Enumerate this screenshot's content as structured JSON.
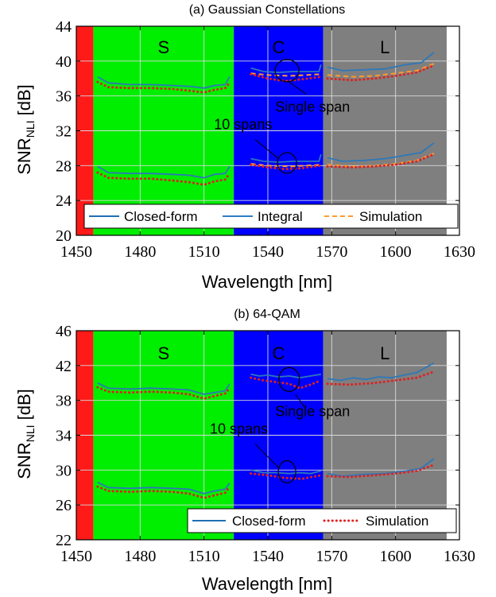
{
  "chart_data": [
    {
      "type": "line",
      "title": "(a) Gaussian Constellations",
      "xlabel": "Wavelength [nm]",
      "ylabel_main": "SNR",
      "ylabel_sub": "NLI",
      "ylabel_unit": " [dB]",
      "xlim": [
        1450,
        1630
      ],
      "ylim": [
        20,
        44
      ],
      "xticks": [
        "1450",
        "1480",
        "1510",
        "1540",
        "1570",
        "1600",
        "1630"
      ],
      "yticks": [
        "20",
        "24",
        "28",
        "32",
        "36",
        "40",
        "44"
      ],
      "grid": true,
      "bands": [
        {
          "name": "",
          "x0": 1450,
          "x1": 1458,
          "color": "#ff1a1a"
        },
        {
          "name": "S",
          "x0": 1458,
          "x1": 1524,
          "color": "#00ee00"
        },
        {
          "name": "C",
          "x0": 1524,
          "x1": 1566,
          "color": "#0000ff"
        },
        {
          "name": "L",
          "x0": 1566,
          "x1": 1624,
          "color": "#7f7f7f"
        }
      ],
      "annotations": [
        {
          "text": "Single span",
          "x": 1561,
          "y": 34.2
        },
        {
          "text": "10 spans",
          "x": 1542,
          "y": 32.2
        }
      ],
      "legend": {
        "placement": "bottom",
        "entries": [
          {
            "label": "Closed-form",
            "style": "solid",
            "color": "#1f6fb4"
          },
          {
            "label": "Integral",
            "style": "solid",
            "color": "#2e7fc2"
          },
          {
            "label": "Simulation",
            "style": "dashed",
            "color": "#ff9a2e"
          }
        ]
      },
      "series": [
        {
          "name": "Closed-form",
          "group": "Single span",
          "color": "#2e78b8",
          "style": "solid",
          "segments": [
            {
              "x": [
                1460,
                1465,
                1475,
                1485,
                1495,
                1503,
                1510,
                1515,
                1520,
                1522
              ],
              "y": [
                38.2,
                37.5,
                37.3,
                37.3,
                37.2,
                37.1,
                36.9,
                37.2,
                37.3,
                38.2
              ]
            },
            {
              "x": [
                1532,
                1538,
                1545,
                1552,
                1558,
                1564,
                1565
              ],
              "y": [
                39.2,
                38.8,
                38.7,
                38.8,
                38.8,
                38.8,
                39.6
              ]
            },
            {
              "x": [
                1568,
                1575,
                1585,
                1595,
                1605,
                1612,
                1618
              ],
              "y": [
                39.3,
                38.9,
                39.0,
                39.1,
                39.6,
                39.8,
                41.0
              ]
            }
          ]
        },
        {
          "name": "Simulation",
          "group": "Single span",
          "color": "#ff9a2e",
          "style": "dashed",
          "segments": [
            {
              "x": [
                1532,
                1540,
                1550,
                1558,
                1565
              ],
              "y": [
                38.6,
                38.4,
                38.3,
                38.4,
                38.5
              ]
            },
            {
              "x": [
                1568,
                1580,
                1590,
                1600,
                1610,
                1618
              ],
              "y": [
                38.4,
                38.2,
                38.3,
                38.6,
                38.9,
                39.7
              ]
            }
          ]
        },
        {
          "name": "Simulation",
          "group": "Single span",
          "color": "#e02020",
          "style": "dotted",
          "segments": [
            {
              "x": [
                1460,
                1465,
                1475,
                1485,
                1495,
                1503,
                1510,
                1515,
                1520,
                1522
              ],
              "y": [
                37.6,
                37.0,
                36.9,
                36.9,
                36.8,
                36.6,
                36.4,
                36.7,
                36.9,
                37.5
              ]
            },
            {
              "x": [
                1532,
                1540,
                1548,
                1556,
                1565
              ],
              "y": [
                38.5,
                38.0,
                37.7,
                37.9,
                38.2
              ]
            },
            {
              "x": [
                1568,
                1580,
                1590,
                1600,
                1610,
                1618
              ],
              "y": [
                38.0,
                37.8,
                38.0,
                38.3,
                38.7,
                39.5
              ]
            }
          ]
        },
        {
          "name": "Closed-form",
          "group": "10 spans",
          "color": "#2e78b8",
          "style": "solid",
          "segments": [
            {
              "x": [
                1460,
                1465,
                1475,
                1485,
                1495,
                1503,
                1510,
                1515,
                1520,
                1522
              ],
              "y": [
                27.9,
                27.2,
                27.1,
                27.1,
                27.0,
                26.9,
                26.6,
                27.0,
                27.1,
                27.9
              ]
            },
            {
              "x": [
                1532,
                1538,
                1545,
                1552,
                1558,
                1564,
                1565
              ],
              "y": [
                28.8,
                28.5,
                28.4,
                28.5,
                28.5,
                28.5,
                29.3
              ]
            },
            {
              "x": [
                1568,
                1575,
                1585,
                1595,
                1605,
                1612,
                1618
              ],
              "y": [
                28.9,
                28.5,
                28.6,
                28.8,
                29.2,
                29.5,
                30.6
              ]
            }
          ]
        },
        {
          "name": "Simulation",
          "group": "10 spans",
          "color": "#ff9a2e",
          "style": "dashed",
          "segments": [
            {
              "x": [
                1532,
                1540,
                1550,
                1558,
                1565
              ],
              "y": [
                28.2,
                28.0,
                27.9,
                28.0,
                28.1
              ]
            },
            {
              "x": [
                1568,
                1580,
                1590,
                1600,
                1610,
                1618
              ],
              "y": [
                28.1,
                27.9,
                28.0,
                28.2,
                28.6,
                29.4
              ]
            }
          ]
        },
        {
          "name": "Simulation",
          "group": "10 spans",
          "color": "#e02020",
          "style": "dotted",
          "segments": [
            {
              "x": [
                1460,
                1465,
                1475,
                1485,
                1495,
                1503,
                1510,
                1515,
                1520,
                1522
              ],
              "y": [
                27.2,
                26.6,
                26.5,
                26.5,
                26.3,
                26.1,
                25.8,
                26.2,
                26.4,
                27.1
              ]
            },
            {
              "x": [
                1532,
                1540,
                1548,
                1556,
                1565
              ],
              "y": [
                28.1,
                27.8,
                27.6,
                27.7,
                28.0
              ]
            },
            {
              "x": [
                1568,
                1580,
                1590,
                1600,
                1610,
                1618
              ],
              "y": [
                27.9,
                27.8,
                27.9,
                28.1,
                28.5,
                29.3
              ]
            }
          ]
        }
      ]
    },
    {
      "type": "line",
      "title": "(b) 64-QAM",
      "xlabel": "Wavelength [nm]",
      "ylabel_main": "SNR",
      "ylabel_sub": "NLI",
      "ylabel_unit": " [dB]",
      "xlim": [
        1450,
        1630
      ],
      "ylim": [
        22,
        46
      ],
      "xticks": [
        "1450",
        "1480",
        "1510",
        "1540",
        "1570",
        "1600",
        "1630"
      ],
      "yticks": [
        "22",
        "26",
        "30",
        "34",
        "38",
        "42",
        "46"
      ],
      "grid": true,
      "bands": [
        {
          "name": "",
          "x0": 1450,
          "x1": 1458,
          "color": "#ff1a1a"
        },
        {
          "name": "S",
          "x0": 1458,
          "x1": 1524,
          "color": "#00ee00"
        },
        {
          "name": "C",
          "x0": 1524,
          "x1": 1566,
          "color": "#0000ff"
        },
        {
          "name": "L",
          "x0": 1566,
          "x1": 1624,
          "color": "#7f7f7f"
        }
      ],
      "annotations": [
        {
          "text": "Single span",
          "x": 1561,
          "y": 36.2
        },
        {
          "text": "10 spans",
          "x": 1540,
          "y": 34.2
        }
      ],
      "legend": {
        "placement": "bottom-right",
        "entries": [
          {
            "label": "Closed-form",
            "style": "solid",
            "color": "#1f6fb4"
          },
          {
            "label": "Simulation",
            "style": "dotted",
            "color": "#e02020"
          }
        ]
      },
      "series": [
        {
          "name": "Closed-form",
          "group": "Single span",
          "color": "#2e78b8",
          "style": "solid",
          "segments": [
            {
              "x": [
                1460,
                1465,
                1475,
                1485,
                1495,
                1503,
                1510,
                1515,
                1520,
                1522
              ],
              "y": [
                40.0,
                39.4,
                39.3,
                39.4,
                39.3,
                39.2,
                38.7,
                38.9,
                39.1,
                39.9
              ]
            },
            {
              "x": [
                1532,
                1536,
                1540,
                1545,
                1550,
                1555,
                1560,
                1565
              ],
              "y": [
                41.0,
                40.8,
                40.9,
                40.7,
                40.8,
                40.6,
                40.8,
                41.0
              ]
            },
            {
              "x": [
                1568,
                1574,
                1580,
                1586,
                1592,
                1598,
                1604,
                1610,
                1618
              ],
              "y": [
                40.5,
                40.3,
                40.6,
                40.4,
                40.7,
                40.6,
                40.9,
                41.2,
                42.3
              ]
            }
          ]
        },
        {
          "name": "Simulation",
          "group": "Single span",
          "color": "#e02020",
          "style": "dotted",
          "segments": [
            {
              "x": [
                1460,
                1465,
                1475,
                1485,
                1495,
                1503,
                1510,
                1515,
                1520,
                1522
              ],
              "y": [
                39.5,
                39.0,
                38.9,
                39.0,
                38.9,
                38.7,
                38.2,
                38.5,
                38.8,
                39.4
              ]
            },
            {
              "x": [
                1532,
                1538,
                1544,
                1550,
                1555,
                1560,
                1565
              ],
              "y": [
                40.6,
                40.3,
                40.1,
                39.9,
                39.4,
                39.8,
                40.3
              ]
            },
            {
              "x": [
                1568,
                1578,
                1590,
                1600,
                1610,
                1618
              ],
              "y": [
                39.9,
                39.8,
                40.0,
                40.3,
                40.6,
                41.3
              ]
            }
          ]
        },
        {
          "name": "Closed-form",
          "group": "10 spans",
          "color": "#2e78b8",
          "style": "solid",
          "segments": [
            {
              "x": [
                1460,
                1465,
                1475,
                1485,
                1495,
                1503,
                1510,
                1515,
                1520,
                1522
              ],
              "y": [
                28.6,
                28.0,
                27.9,
                28.0,
                27.9,
                27.8,
                27.3,
                27.6,
                27.8,
                28.5
              ]
            },
            {
              "x": [
                1532,
                1538,
                1544,
                1550,
                1555,
                1560,
                1565
              ],
              "y": [
                30.0,
                29.7,
                29.7,
                29.6,
                29.7,
                29.6,
                29.9
              ]
            },
            {
              "x": [
                1568,
                1575,
                1585,
                1595,
                1605,
                1612,
                1618
              ],
              "y": [
                29.6,
                29.3,
                29.5,
                29.6,
                29.9,
                30.2,
                31.3
              ]
            }
          ]
        },
        {
          "name": "Simulation",
          "group": "10 spans",
          "color": "#e02020",
          "style": "dotted",
          "segments": [
            {
              "x": [
                1460,
                1465,
                1475,
                1485,
                1495,
                1503,
                1510,
                1515,
                1520,
                1522
              ],
              "y": [
                28.1,
                27.6,
                27.5,
                27.6,
                27.5,
                27.3,
                26.8,
                27.1,
                27.4,
                28.1
              ]
            },
            {
              "x": [
                1532,
                1540,
                1548,
                1556,
                1565
              ],
              "y": [
                29.6,
                29.4,
                29.1,
                29.0,
                29.4
              ]
            },
            {
              "x": [
                1568,
                1578,
                1590,
                1600,
                1610,
                1618
              ],
              "y": [
                29.3,
                29.2,
                29.4,
                29.6,
                29.9,
                30.6
              ]
            }
          ]
        }
      ]
    }
  ]
}
